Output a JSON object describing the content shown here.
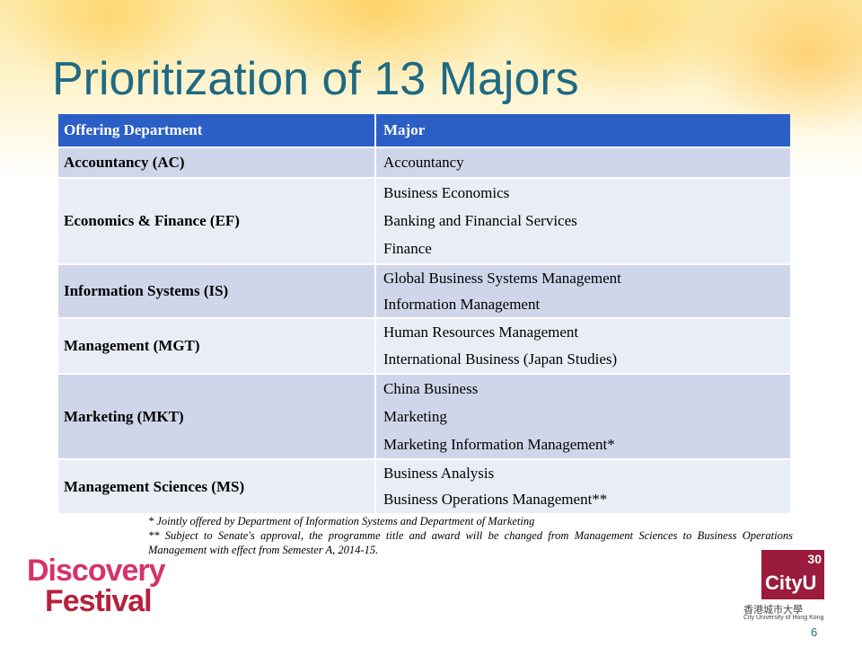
{
  "title": "Prioritization of 13 Majors",
  "table": {
    "header": [
      "Offering Department",
      "Major"
    ],
    "rows": [
      {
        "department": "Accountancy (AC)",
        "majors": [
          "Accountancy"
        ]
      },
      {
        "department": "Economics & Finance (EF)",
        "majors": [
          "Business Economics",
          "Banking and Financial Services",
          "Finance"
        ]
      },
      {
        "department": "Information Systems (IS)",
        "majors": [
          "Global Business Systems Management",
          "Information Management"
        ]
      },
      {
        "department": "Management  (MGT)",
        "majors": [
          "Human Resources Management",
          "International  Business (Japan Studies)"
        ]
      },
      {
        "department": "Marketing (MKT)",
        "majors": [
          "China Business",
          "Marketing",
          "Marketing Information Management*"
        ]
      },
      {
        "department": "Management  Sciences (MS)",
        "majors": [
          "Business Analysis",
          "Business Operations Management**"
        ]
      }
    ]
  },
  "footnotes": [
    "*  Jointly offered by Department of Information Systems and Department of Marketing",
    "**  Subject to Senate's approval, the programme title and award will be changed from Management Sciences to Business Operations Management with effect from Semester A, 2014-15."
  ],
  "logos": {
    "festival": [
      "Discovery",
      "Festival"
    ],
    "cityu": {
      "name": "CityU",
      "anniversary": "30",
      "chinese": "香港城市大學",
      "english": "City University of Hong Kong"
    }
  },
  "page_number": "6"
}
